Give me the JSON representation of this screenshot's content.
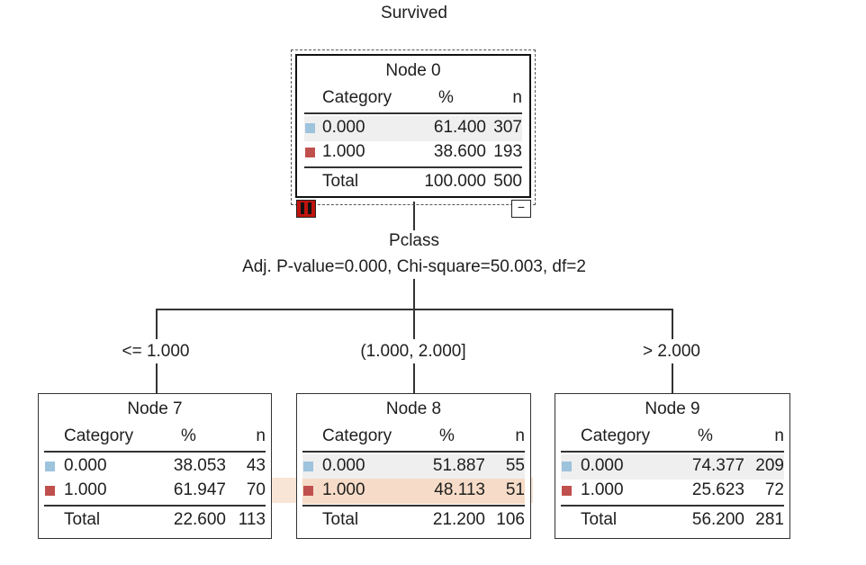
{
  "title": "Survived",
  "colors": {
    "cat0": "#9dc3dd",
    "cat1": "#c0504d",
    "selection_band": "#f6dcc8",
    "row_band": "#efefef"
  },
  "table_headers": {
    "category": "Category",
    "percent": "%",
    "n": "n",
    "total": "Total"
  },
  "split": {
    "variable": "Pclass",
    "stats": "Adj. P-value=0.000, Chi-square=50.003, df=2",
    "branches": [
      "<= 1.000",
      "(1.000, 2.000]",
      "> 2.000"
    ]
  },
  "nodes": [
    {
      "name": "Node 0",
      "rows": [
        {
          "cat": "0.000",
          "pct": "61.400",
          "n": "307"
        },
        {
          "cat": "1.000",
          "pct": "38.600",
          "n": "193"
        }
      ],
      "total": {
        "pct": "100.000",
        "n": "500"
      }
    },
    {
      "name": "Node 7",
      "rows": [
        {
          "cat": "0.000",
          "pct": "38.053",
          "n": "43"
        },
        {
          "cat": "1.000",
          "pct": "61.947",
          "n": "70"
        }
      ],
      "total": {
        "pct": "22.600",
        "n": "113"
      }
    },
    {
      "name": "Node 8",
      "rows": [
        {
          "cat": "0.000",
          "pct": "51.887",
          "n": "55"
        },
        {
          "cat": "1.000",
          "pct": "48.113",
          "n": "51"
        }
      ],
      "total": {
        "pct": "21.200",
        "n": "106"
      }
    },
    {
      "name": "Node 9",
      "rows": [
        {
          "cat": "0.000",
          "pct": "74.377",
          "n": "209"
        },
        {
          "cat": "1.000",
          "pct": "25.623",
          "n": "72"
        }
      ],
      "total": {
        "pct": "56.200",
        "n": "281"
      }
    }
  ],
  "collapse_symbol": "−"
}
